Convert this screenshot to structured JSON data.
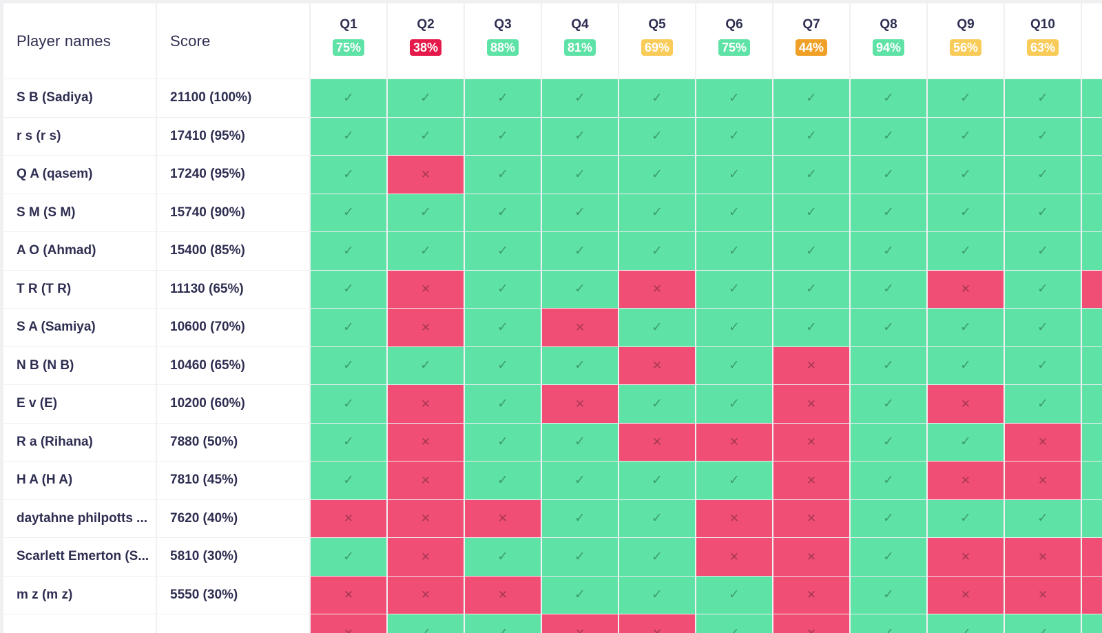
{
  "columns": {
    "player_label": "Player names",
    "score_label": "Score"
  },
  "questions": [
    {
      "label": "Q1",
      "pct": "75%",
      "color": "#5fe2a6"
    },
    {
      "label": "Q2",
      "pct": "38%",
      "color": "#e5194a"
    },
    {
      "label": "Q3",
      "pct": "88%",
      "color": "#5fe2a6"
    },
    {
      "label": "Q4",
      "pct": "81%",
      "color": "#5fe2a6"
    },
    {
      "label": "Q5",
      "pct": "69%",
      "color": "#f9cc5a"
    },
    {
      "label": "Q6",
      "pct": "75%",
      "color": "#5fe2a6"
    },
    {
      "label": "Q7",
      "pct": "44%",
      "color": "#f0a026"
    },
    {
      "label": "Q8",
      "pct": "94%",
      "color": "#5fe2a6"
    },
    {
      "label": "Q9",
      "pct": "56%",
      "color": "#f9cc5a"
    },
    {
      "label": "Q10",
      "pct": "63%",
      "color": "#f9cc5a"
    },
    {
      "label": "",
      "pct": "",
      "color": ""
    }
  ],
  "players": [
    {
      "name": "S B (Sadiya)",
      "score": "21100 (100%)",
      "answers": [
        1,
        1,
        1,
        1,
        1,
        1,
        1,
        1,
        1,
        1,
        1
      ]
    },
    {
      "name": "r s (r s)",
      "score": "17410 (95%)",
      "answers": [
        1,
        1,
        1,
        1,
        1,
        1,
        1,
        1,
        1,
        1,
        1
      ]
    },
    {
      "name": "Q A (qasem)",
      "score": "17240 (95%)",
      "answers": [
        1,
        0,
        1,
        1,
        1,
        1,
        1,
        1,
        1,
        1,
        1
      ]
    },
    {
      "name": "S M (S M)",
      "score": "15740 (90%)",
      "answers": [
        1,
        1,
        1,
        1,
        1,
        1,
        1,
        1,
        1,
        1,
        1
      ]
    },
    {
      "name": "A O (Ahmad)",
      "score": "15400 (85%)",
      "answers": [
        1,
        1,
        1,
        1,
        1,
        1,
        1,
        1,
        1,
        1,
        1
      ]
    },
    {
      "name": "T R (T R)",
      "score": "11130 (65%)",
      "answers": [
        1,
        0,
        1,
        1,
        0,
        1,
        1,
        1,
        0,
        1,
        0
      ]
    },
    {
      "name": "S A (Samiya)",
      "score": "10600 (70%)",
      "answers": [
        1,
        0,
        1,
        0,
        1,
        1,
        1,
        1,
        1,
        1,
        1
      ]
    },
    {
      "name": "N B (N B)",
      "score": "10460 (65%)",
      "answers": [
        1,
        1,
        1,
        1,
        0,
        1,
        0,
        1,
        1,
        1,
        1
      ]
    },
    {
      "name": "E v (E)",
      "score": "10200 (60%)",
      "answers": [
        1,
        0,
        1,
        0,
        1,
        1,
        0,
        1,
        0,
        1,
        1
      ]
    },
    {
      "name": "R a (Rihana)",
      "score": "7880 (50%)",
      "answers": [
        1,
        0,
        1,
        1,
        0,
        0,
        0,
        1,
        1,
        0,
        1
      ]
    },
    {
      "name": "H A (H A)",
      "score": "7810 (45%)",
      "answers": [
        1,
        0,
        1,
        1,
        1,
        1,
        0,
        1,
        0,
        0,
        1
      ]
    },
    {
      "name": "daytahne philpotts ...",
      "score": "7620 (40%)",
      "answers": [
        0,
        0,
        0,
        1,
        1,
        0,
        0,
        1,
        1,
        1,
        1
      ]
    },
    {
      "name": "Scarlett Emerton (S...",
      "score": "5810 (30%)",
      "answers": [
        1,
        0,
        1,
        1,
        1,
        0,
        0,
        1,
        0,
        0,
        0
      ]
    },
    {
      "name": "m z (m z)",
      "score": "5550 (30%)",
      "answers": [
        0,
        0,
        0,
        1,
        1,
        1,
        0,
        1,
        0,
        0,
        0
      ]
    },
    {
      "name": "",
      "score": "",
      "answers": [
        0,
        1,
        1,
        0,
        0,
        1,
        0,
        1,
        1,
        1,
        1
      ]
    }
  ],
  "icons": {
    "correct": "check-icon",
    "incorrect": "cross-icon",
    "correct_glyph": "✓",
    "incorrect_glyph": "✕"
  },
  "colors": {
    "correct": "#5fe2a6",
    "incorrect": "#f04e74",
    "header_text": "#2e2e52"
  }
}
